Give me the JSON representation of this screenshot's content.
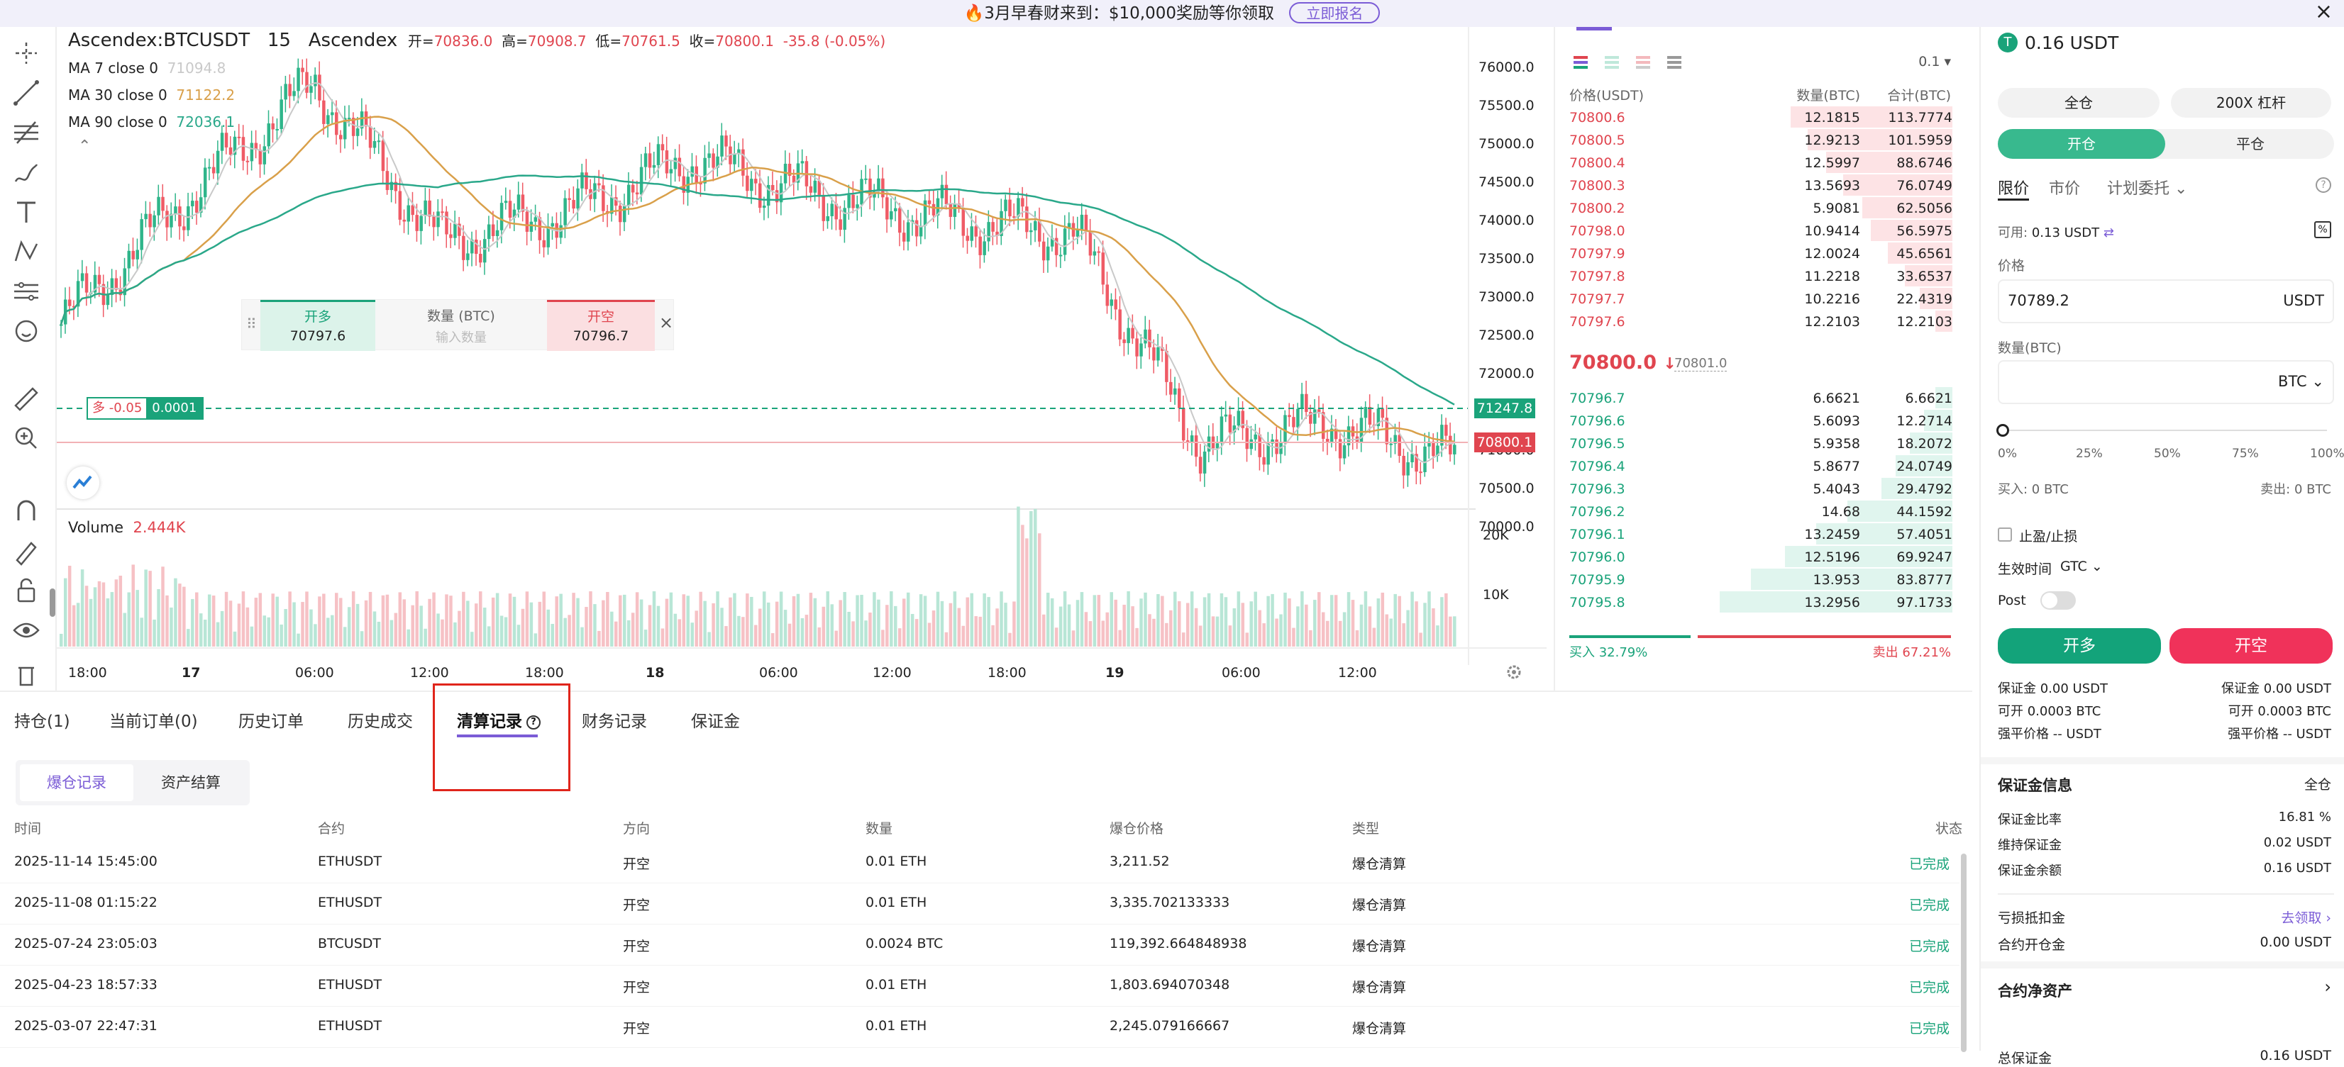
{
  "banner": {
    "text": "🔥3月早春财来到：$10,000奖励等你领取",
    "cta": "立即报名"
  },
  "chart": {
    "symbol": "Ascendex:BTCUSDT",
    "interval": "15",
    "exchange": "Ascendex",
    "ohlc": {
      "o_label": "开=",
      "o": "70836.0",
      "h_label": "高=",
      "h": "70908.7",
      "l_label": "低=",
      "l": "70761.5",
      "c_label": "收=",
      "c": "70800.1",
      "chg": "-35.8 (-0.05%)"
    },
    "ma": [
      {
        "label": "MA 7 close 0",
        "value": "71094.8",
        "color": "#c9c9c9"
      },
      {
        "label": "MA 30 close 0",
        "value": "71122.2",
        "color": "#d9a04a"
      },
      {
        "label": "MA 90 close 0",
        "value": "72036.1",
        "color": "#2aa88a"
      }
    ],
    "price_ticks": [
      "76000.0",
      "75500.0",
      "75000.0",
      "74500.0",
      "74000.0",
      "73500.0",
      "73000.0",
      "72500.0",
      "72000.0",
      "71500.0",
      "71000.0",
      "70500.0",
      "70000.0"
    ],
    "price_tag_green": "71247.8",
    "price_tag_red": "70800.1",
    "position_tag": {
      "side": "多 -0.05",
      "qty": "0.0001"
    },
    "quick_trade": {
      "long_label": "开多",
      "long_price": "70797.6",
      "qty_label": "数量 (BTC)",
      "qty_placeholder": "输入数量",
      "short_label": "开空",
      "short_price": "70796.7",
      "close": "×"
    },
    "volume_label": "Volume",
    "volume_value": "2.444K",
    "volume_ticks": [
      "20K",
      "10K"
    ],
    "time_ticks": [
      "18:00",
      "17",
      "06:00",
      "12:00",
      "18:00",
      "18",
      "06:00",
      "12:00",
      "18:00",
      "19",
      "06:00",
      "12:00"
    ]
  },
  "chart_data": {
    "type": "candlestick",
    "title": "",
    "ylim": [
      70000,
      76000
    ],
    "x": [
      "16 18:00",
      "17 00:00",
      "17 06:00",
      "17 12:00",
      "17 18:00",
      "18 00:00",
      "18 06:00",
      "18 12:00",
      "18 18:00",
      "19 00:00",
      "19 06:00",
      "19 12:00"
    ],
    "close": [
      72600,
      74300,
      75800,
      73700,
      74100,
      74800,
      74300,
      74000,
      73800,
      71000,
      71300,
      70800
    ],
    "grid": false
  },
  "book": {
    "precision": "0.1",
    "headers": {
      "price": "价格(USDT)",
      "qty": "数量(BTC)",
      "total": "合计(BTC)"
    },
    "asks": [
      {
        "p": "70800.6",
        "q": "12.1815",
        "t": "113.7774",
        "d": 0.95
      },
      {
        "p": "70800.5",
        "q": "12.9213",
        "t": "101.5959",
        "d": 0.85
      },
      {
        "p": "70800.4",
        "q": "12.5997",
        "t": "88.6746",
        "d": 0.74
      },
      {
        "p": "70800.3",
        "q": "13.5693",
        "t": "76.0749",
        "d": 0.64
      },
      {
        "p": "70800.2",
        "q": "5.9081",
        "t": "62.5056",
        "d": 0.53
      },
      {
        "p": "70798.0",
        "q": "10.9414",
        "t": "56.5975",
        "d": 0.48
      },
      {
        "p": "70797.9",
        "q": "12.0024",
        "t": "45.6561",
        "d": 0.38
      },
      {
        "p": "70797.8",
        "q": "11.2218",
        "t": "33.6537",
        "d": 0.28
      },
      {
        "p": "70797.7",
        "q": "10.2216",
        "t": "22.4319",
        "d": 0.19
      },
      {
        "p": "70797.6",
        "q": "12.2103",
        "t": "12.2103",
        "d": 0.1
      }
    ],
    "last": "70800.0",
    "last_arrow": "↓",
    "mark": "70801.0",
    "bids": [
      {
        "p": "70796.7",
        "q": "6.6621",
        "t": "6.6621",
        "d": 0.06
      },
      {
        "p": "70796.6",
        "q": "5.6093",
        "t": "12.2714",
        "d": 0.1
      },
      {
        "p": "70796.5",
        "q": "5.9358",
        "t": "18.2072",
        "d": 0.15
      },
      {
        "p": "70796.4",
        "q": "5.8677",
        "t": "24.0749",
        "d": 0.2
      },
      {
        "p": "70796.3",
        "q": "5.4043",
        "t": "29.4792",
        "d": 0.25
      },
      {
        "p": "70796.2",
        "q": "14.68",
        "t": "44.1592",
        "d": 0.37
      },
      {
        "p": "70796.1",
        "q": "13.2459",
        "t": "57.4051",
        "d": 0.48
      },
      {
        "p": "70796.0",
        "q": "12.5196",
        "t": "69.9247",
        "d": 0.59
      },
      {
        "p": "70795.9",
        "q": "13.953",
        "t": "83.8777",
        "d": 0.71
      },
      {
        "p": "70795.8",
        "q": "13.2956",
        "t": "97.1733",
        "d": 0.82
      }
    ],
    "buy_ratio": "买入 32.79%",
    "sell_ratio": "卖出 67.21%",
    "buy_fraction": 0.3279
  },
  "order": {
    "balance": "0.16 USDT",
    "margin_mode": "全仓",
    "leverage": "200X 杠杆",
    "open": "开仓",
    "close": "平仓",
    "types": [
      "限价",
      "市价",
      "计划委托"
    ],
    "available_label": "可用:",
    "available": "0.13 USDT",
    "price_label": "价格",
    "price_value": "70789.2",
    "price_unit": "USDT",
    "qty_label": "数量(BTC)",
    "qty_unit": "BTC",
    "slider_ticks": [
      "0%",
      "25%",
      "50%",
      "75%",
      "100%"
    ],
    "slider_level": 0,
    "buy_label": "买入: 0 BTC",
    "sell_label": "卖出: 0 BTC",
    "tpsl": "止盈/止损",
    "tif_label": "生效时间",
    "tif_value": "GTC",
    "post": "Post",
    "long_btn": "开多",
    "short_btn": "开空",
    "left": {
      "margin": "保证金 0.00 USDT",
      "avail": "可开 0.0003 BTC",
      "liq": "强平价格 -- USDT"
    },
    "right": {
      "margin": "保证金 0.00 USDT",
      "avail": "可开 0.0003 BTC",
      "liq": "强平价格 -- USDT"
    },
    "margin_info_title": "保证金信息",
    "margin_info_mode": "全仓",
    "margin_rows": [
      {
        "k": "保证金比率",
        "v": "16.81 %"
      },
      {
        "k": "维持保证金",
        "v": "0.02 USDT"
      },
      {
        "k": "保证金余额",
        "v": "0.16 USDT"
      }
    ],
    "loss_deduct": "亏损抵扣金",
    "loss_claim": "去领取 ›",
    "contract_open": "合约开仓金",
    "contract_open_value": "0.00 USDT",
    "net_assets": "合约净资产",
    "total_margin": "总保证金",
    "total_margin_value": "0.16 USDT"
  },
  "bottom": {
    "tabs": [
      "持仓(1)",
      "当前订单(0)",
      "历史订单",
      "历史成交",
      "清算记录",
      "财务记录",
      "保证金"
    ],
    "subtabs": [
      "爆仓记录",
      "资产结算"
    ],
    "headers": [
      "时间",
      "合约",
      "方向",
      "数量",
      "爆仓价格",
      "类型",
      "状态"
    ],
    "rows": [
      [
        "2025-11-14 15:45:00",
        "ETHUSDT",
        "开空",
        "0.01 ETH",
        "3,211.52",
        "爆仓清算",
        "已完成"
      ],
      [
        "2025-11-08 01:15:22",
        "ETHUSDT",
        "开空",
        "0.01 ETH",
        "3,335.702133333",
        "爆仓清算",
        "已完成"
      ],
      [
        "2025-07-24 23:05:03",
        "BTCUSDT",
        "开空",
        "0.0024 BTC",
        "119,392.664848938",
        "爆仓清算",
        "已完成"
      ],
      [
        "2025-04-23 18:57:33",
        "ETHUSDT",
        "开空",
        "0.01 ETH",
        "1,803.694070348",
        "爆仓清算",
        "已完成"
      ],
      [
        "2025-03-07 22:47:31",
        "ETHUSDT",
        "开空",
        "0.01 ETH",
        "2,245.079166667",
        "爆仓清算",
        "已完成"
      ]
    ]
  }
}
